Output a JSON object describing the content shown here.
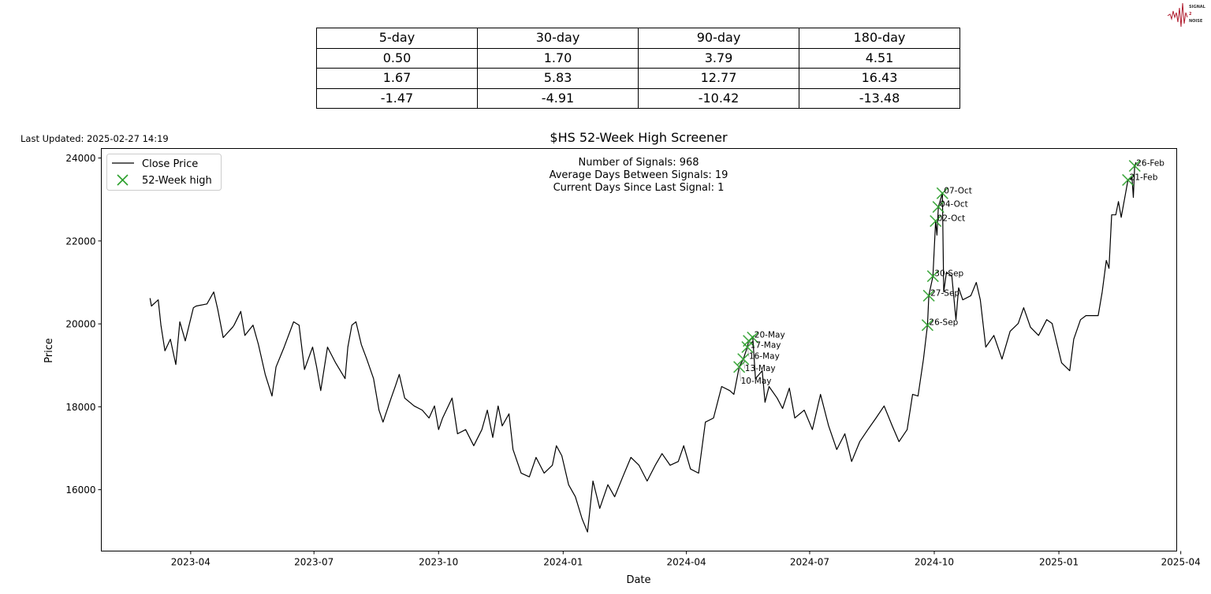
{
  "logo": {
    "text": [
      "SIGNAL",
      "2",
      "NOISE"
    ],
    "color": "#b01c2e"
  },
  "table": {
    "header": [
      "5-day",
      "30-day",
      "90-day",
      "180-day"
    ],
    "rows": [
      [
        "0.50",
        "1.70",
        "3.79",
        "4.51"
      ],
      [
        "1.67",
        "5.83",
        "12.77",
        "16.43"
      ],
      [
        "-1.47",
        "-4.91",
        "-10.42",
        "-13.48"
      ]
    ]
  },
  "last_updated": "Last Updated: 2025-02-27 14:19",
  "chart_data": {
    "type": "line",
    "title": "$HS 52-Week High Screener",
    "xlabel": "Date",
    "ylabel": "Price",
    "xlim": [
      "2023-01-25",
      "2025-03-29"
    ],
    "ylim": [
      14520,
      24230
    ],
    "x_ticks": [
      "2023-04",
      "2023-07",
      "2023-10",
      "2024-01",
      "2024-04",
      "2024-07",
      "2024-10",
      "2025-01",
      "2025-04"
    ],
    "y_ticks": [
      16000,
      18000,
      20000,
      22000,
      24000
    ],
    "grid": false,
    "legend": {
      "placement": "top-left",
      "entries": [
        "Close Price",
        "52-Week high"
      ]
    },
    "annotation_lines": [
      "Number of Signals: 968",
      "Average Days Between Signals: 19",
      "Current Days Since Last Signal: 1"
    ],
    "series": [
      {
        "name": "Close Price",
        "color": "#000000",
        "points": [
          [
            "2023-03-02",
            20620
          ],
          [
            "2023-03-03",
            20430
          ],
          [
            "2023-03-08",
            20580
          ],
          [
            "2023-03-10",
            19970
          ],
          [
            "2023-03-13",
            19350
          ],
          [
            "2023-03-17",
            19630
          ],
          [
            "2023-03-21",
            19020
          ],
          [
            "2023-03-24",
            20050
          ],
          [
            "2023-03-28",
            19590
          ],
          [
            "2023-04-03",
            20390
          ],
          [
            "2023-04-05",
            20430
          ],
          [
            "2023-04-13",
            20480
          ],
          [
            "2023-04-18",
            20770
          ],
          [
            "2023-04-21",
            20350
          ],
          [
            "2023-04-25",
            19670
          ],
          [
            "2023-05-02",
            19920
          ],
          [
            "2023-05-03",
            19970
          ],
          [
            "2023-05-08",
            20300
          ],
          [
            "2023-05-11",
            19720
          ],
          [
            "2023-05-17",
            19970
          ],
          [
            "2023-05-21",
            19500
          ],
          [
            "2023-05-26",
            18780
          ],
          [
            "2023-05-31",
            18260
          ],
          [
            "2023-06-03",
            18960
          ],
          [
            "2023-06-09",
            19440
          ],
          [
            "2023-06-16",
            20050
          ],
          [
            "2023-06-20",
            19970
          ],
          [
            "2023-06-24",
            18900
          ],
          [
            "2023-06-30",
            19440
          ],
          [
            "2023-07-03",
            18960
          ],
          [
            "2023-07-06",
            18390
          ],
          [
            "2023-07-11",
            19440
          ],
          [
            "2023-07-17",
            19060
          ],
          [
            "2023-07-24",
            18680
          ],
          [
            "2023-07-26",
            19440
          ],
          [
            "2023-07-29",
            19970
          ],
          [
            "2023-08-01",
            20050
          ],
          [
            "2023-08-05",
            19500
          ],
          [
            "2023-08-09",
            19150
          ],
          [
            "2023-08-14",
            18680
          ],
          [
            "2023-08-18",
            17920
          ],
          [
            "2023-08-21",
            17630
          ],
          [
            "2023-08-27",
            18210
          ],
          [
            "2023-08-30",
            18490
          ],
          [
            "2023-09-02",
            18780
          ],
          [
            "2023-09-06",
            18210
          ],
          [
            "2023-09-13",
            18020
          ],
          [
            "2023-09-19",
            17920
          ],
          [
            "2023-09-24",
            17730
          ],
          [
            "2023-09-28",
            18020
          ],
          [
            "2023-10-01",
            17450
          ],
          [
            "2023-10-04",
            17730
          ],
          [
            "2023-10-11",
            18210
          ],
          [
            "2023-10-15",
            17350
          ],
          [
            "2023-10-21",
            17450
          ],
          [
            "2023-10-27",
            17060
          ],
          [
            "2023-11-02",
            17450
          ],
          [
            "2023-11-06",
            17920
          ],
          [
            "2023-11-10",
            17260
          ],
          [
            "2023-11-14",
            18020
          ],
          [
            "2023-11-17",
            17540
          ],
          [
            "2023-11-22",
            17830
          ],
          [
            "2023-11-25",
            16970
          ],
          [
            "2023-12-01",
            16400
          ],
          [
            "2023-12-07",
            16310
          ],
          [
            "2023-12-12",
            16780
          ],
          [
            "2023-12-18",
            16400
          ],
          [
            "2023-12-24",
            16590
          ],
          [
            "2023-12-27",
            17060
          ],
          [
            "2023-12-31",
            16820
          ],
          [
            "2024-01-05",
            16120
          ],
          [
            "2024-01-10",
            15830
          ],
          [
            "2024-01-15",
            15300
          ],
          [
            "2024-01-19",
            14980
          ],
          [
            "2024-01-23",
            16210
          ],
          [
            "2024-01-28",
            15550
          ],
          [
            "2024-02-03",
            16120
          ],
          [
            "2024-02-08",
            15830
          ],
          [
            "2024-02-14",
            16310
          ],
          [
            "2024-02-20",
            16780
          ],
          [
            "2024-02-26",
            16590
          ],
          [
            "2024-03-03",
            16210
          ],
          [
            "2024-03-09",
            16590
          ],
          [
            "2024-03-14",
            16870
          ],
          [
            "2024-03-20",
            16590
          ],
          [
            "2024-03-26",
            16680
          ],
          [
            "2024-03-30",
            17060
          ],
          [
            "2024-04-04",
            16500
          ],
          [
            "2024-04-10",
            16400
          ],
          [
            "2024-04-15",
            17630
          ],
          [
            "2024-04-21",
            17730
          ],
          [
            "2024-04-27",
            18490
          ],
          [
            "2024-05-03",
            18390
          ],
          [
            "2024-05-06",
            18300
          ],
          [
            "2024-05-10",
            18960
          ],
          [
            "2024-05-13",
            19150
          ],
          [
            "2024-05-16",
            19440
          ],
          [
            "2024-05-17",
            19590
          ],
          [
            "2024-05-20",
            19670
          ],
          [
            "2024-05-22",
            18680
          ],
          [
            "2024-05-27",
            18870
          ],
          [
            "2024-05-29",
            18110
          ],
          [
            "2024-06-01",
            18490
          ],
          [
            "2024-06-07",
            18210
          ],
          [
            "2024-06-11",
            17960
          ],
          [
            "2024-06-16",
            18450
          ],
          [
            "2024-06-20",
            17730
          ],
          [
            "2024-06-27",
            17920
          ],
          [
            "2024-07-03",
            17450
          ],
          [
            "2024-07-09",
            18300
          ],
          [
            "2024-07-15",
            17540
          ],
          [
            "2024-07-21",
            16970
          ],
          [
            "2024-07-27",
            17350
          ],
          [
            "2024-08-01",
            16680
          ],
          [
            "2024-08-07",
            17160
          ],
          [
            "2024-08-13",
            17450
          ],
          [
            "2024-08-19",
            17730
          ],
          [
            "2024-08-25",
            18020
          ],
          [
            "2024-08-31",
            17540
          ],
          [
            "2024-09-05",
            17160
          ],
          [
            "2024-09-11",
            17450
          ],
          [
            "2024-09-15",
            18300
          ],
          [
            "2024-09-19",
            18260
          ],
          [
            "2024-09-23",
            19150
          ],
          [
            "2024-09-26",
            19970
          ],
          [
            "2024-09-27",
            20680
          ],
          [
            "2024-09-30",
            21150
          ],
          [
            "2024-10-02",
            22480
          ],
          [
            "2024-10-03",
            22140
          ],
          [
            "2024-10-04",
            22820
          ],
          [
            "2024-10-07",
            23150
          ],
          [
            "2024-10-08",
            20770
          ],
          [
            "2024-10-10",
            21250
          ],
          [
            "2024-10-14",
            21150
          ],
          [
            "2024-10-17",
            20100
          ],
          [
            "2024-10-19",
            20870
          ],
          [
            "2024-10-22",
            20580
          ],
          [
            "2024-10-28",
            20680
          ],
          [
            "2024-11-01",
            21000
          ],
          [
            "2024-11-04",
            20580
          ],
          [
            "2024-11-08",
            19440
          ],
          [
            "2024-11-14",
            19720
          ],
          [
            "2024-11-20",
            19150
          ],
          [
            "2024-11-26",
            19820
          ],
          [
            "2024-12-02",
            20010
          ],
          [
            "2024-12-06",
            20390
          ],
          [
            "2024-12-11",
            19920
          ],
          [
            "2024-12-17",
            19720
          ],
          [
            "2024-12-23",
            20100
          ],
          [
            "2024-12-27",
            20010
          ],
          [
            "2025-01-03",
            19060
          ],
          [
            "2025-01-09",
            18870
          ],
          [
            "2025-01-12",
            19630
          ],
          [
            "2025-01-17",
            20100
          ],
          [
            "2025-01-21",
            20200
          ],
          [
            "2025-01-30",
            20200
          ],
          [
            "2025-02-02",
            20770
          ],
          [
            "2025-02-05",
            21530
          ],
          [
            "2025-02-07",
            21340
          ],
          [
            "2025-02-09",
            22630
          ],
          [
            "2025-02-12",
            22630
          ],
          [
            "2025-02-14",
            22950
          ],
          [
            "2025-02-16",
            22570
          ],
          [
            "2025-02-21",
            23470
          ],
          [
            "2025-02-24",
            23530
          ],
          [
            "2025-02-25",
            23050
          ],
          [
            "2025-02-26",
            23810
          ],
          [
            "2025-02-27",
            23900
          ]
        ]
      },
      {
        "name": "52-Week high",
        "color": "#2ca02c",
        "type": "scatter",
        "points": [
          [
            "2024-05-10",
            18960,
            "10-May"
          ],
          [
            "2024-05-13",
            19150,
            "13-May"
          ],
          [
            "2024-05-16",
            19440,
            "16-May"
          ],
          [
            "2024-05-17",
            19590,
            "17-May"
          ],
          [
            "2024-05-20",
            19670,
            "20-May"
          ],
          [
            "2024-09-26",
            19970,
            "26-Sep"
          ],
          [
            "2024-09-27",
            20680,
            "27-Sep"
          ],
          [
            "2024-09-30",
            21150,
            "30-Sep"
          ],
          [
            "2024-10-02",
            22480,
            "02-Oct"
          ],
          [
            "2024-10-04",
            22820,
            "04-Oct"
          ],
          [
            "2024-10-07",
            23150,
            "07-Oct"
          ],
          [
            "2025-02-21",
            23470,
            "21-Feb"
          ],
          [
            "2025-02-26",
            23810,
            "26-Feb"
          ]
        ]
      }
    ]
  }
}
